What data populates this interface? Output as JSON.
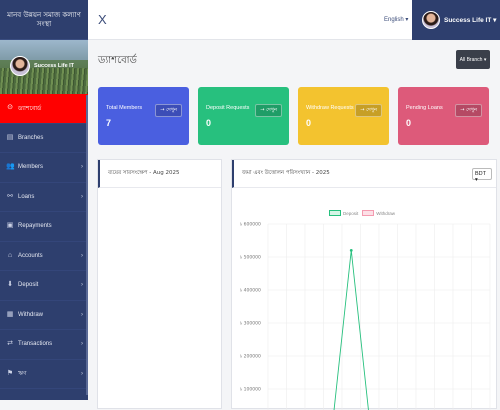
{
  "sidebar": {
    "brand": "মানব উন্নয়ন সমাজ কল্যাণ সংস্থা",
    "profile_name": "Success Life IT",
    "items": [
      {
        "label": "ড্যাশবোর্ড",
        "icon": "dashboard-icon",
        "glyph": "⊙",
        "chevron": false
      },
      {
        "label": "Branches",
        "icon": "branch-icon",
        "glyph": "▤",
        "chevron": false
      },
      {
        "label": "Members",
        "icon": "members-icon",
        "glyph": "👥",
        "chevron": true
      },
      {
        "label": "Loans",
        "icon": "loan-icon",
        "glyph": "⚯",
        "chevron": true
      },
      {
        "label": "Repayments",
        "icon": "repayment-icon",
        "glyph": "▣",
        "chevron": false
      },
      {
        "label": "Accounts",
        "icon": "bank-icon",
        "glyph": "⌂",
        "chevron": true
      },
      {
        "label": "Deposit",
        "icon": "deposit-icon",
        "glyph": "⬇",
        "chevron": true
      },
      {
        "label": "Withdraw",
        "icon": "withdraw-icon",
        "glyph": "▦",
        "chevron": true
      },
      {
        "label": "Transactions",
        "icon": "transactions-icon",
        "glyph": "⇄",
        "chevron": true
      },
      {
        "label": "ঋণ",
        "icon": "ledger-icon",
        "glyph": "⚑",
        "chevron": true
      }
    ]
  },
  "topbar": {
    "close_glyph": "X",
    "language": "English ▾",
    "user_name": "Success Life IT ▾"
  },
  "main": {
    "title": "ড্যাশবোর্ড",
    "branch_button": "All Branch ▾",
    "cards": [
      {
        "label": "Total Members",
        "value": "7",
        "button": "→ দেখুন"
      },
      {
        "label": "Deposit Requests",
        "value": "0",
        "button": "→ দেখুন"
      },
      {
        "label": "Withdraw Requests",
        "value": "0",
        "button": "→ দেখুন"
      },
      {
        "label": "Pending Loans",
        "value": "0",
        "button": "→ দেখুন"
      }
    ],
    "panel_left_title": "ব্যয়ের সারসংক্ষেপ - Aug 2025",
    "panel_right_title": "জমা এবং উত্তোলন পরিসংখ্যান - 2025",
    "currency": "BDT ▾"
  },
  "chart_data": {
    "type": "line",
    "title": "জমা এবং উত্তোলন পরিসংখ্যান - 2025",
    "xlabel": "",
    "ylabel": "",
    "series": [
      {
        "name": "Deposit",
        "color": "#27c07e",
        "values": [
          0,
          0,
          0,
          0,
          520000,
          0,
          0,
          0,
          0,
          0,
          0,
          0
        ]
      },
      {
        "name": "Withdraw",
        "color": "#f49bb0",
        "values": [
          0,
          0,
          0,
          0,
          0,
          0,
          0,
          0,
          0,
          0,
          0,
          0
        ]
      }
    ],
    "ylim": [
      0,
      600000
    ],
    "yticks": [
      "৳ 600000",
      "৳ 500000",
      "৳ 400000",
      "৳ 300000",
      "৳ 200000",
      "৳ 100000"
    ],
    "yvalues": [
      600000,
      500000,
      400000,
      300000,
      200000,
      100000
    ],
    "grid": true,
    "legend": "top-center"
  }
}
